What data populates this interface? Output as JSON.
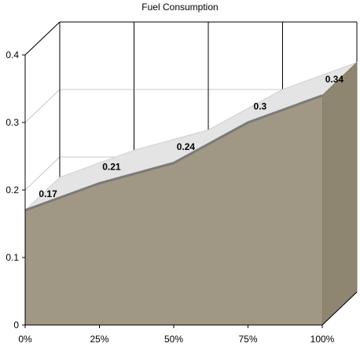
{
  "chart_data": {
    "type": "area",
    "title": "Fuel Consumption",
    "xlabel": "",
    "ylabel": "",
    "categories": [
      "0%",
      "25%",
      "50%",
      "75%",
      "100%"
    ],
    "series": [
      {
        "values": [
          0.17,
          0.21,
          0.24,
          0.3,
          0.34
        ]
      }
    ],
    "value_labels": [
      "0.17",
      "0.21",
      "0.24",
      "0.3",
      "0.34"
    ],
    "yticks": [
      "0",
      "0.1",
      "0.2",
      "0.3",
      "0.4"
    ],
    "ylim": [
      0,
      0.4
    ],
    "grid": true,
    "legend": "none",
    "style": "3d",
    "colors": {
      "area_front": "#a09884",
      "area_side": "#8e8670",
      "area_top": "#e4e4e4",
      "edge": "#7a7a7a",
      "grid": "#000000"
    }
  }
}
